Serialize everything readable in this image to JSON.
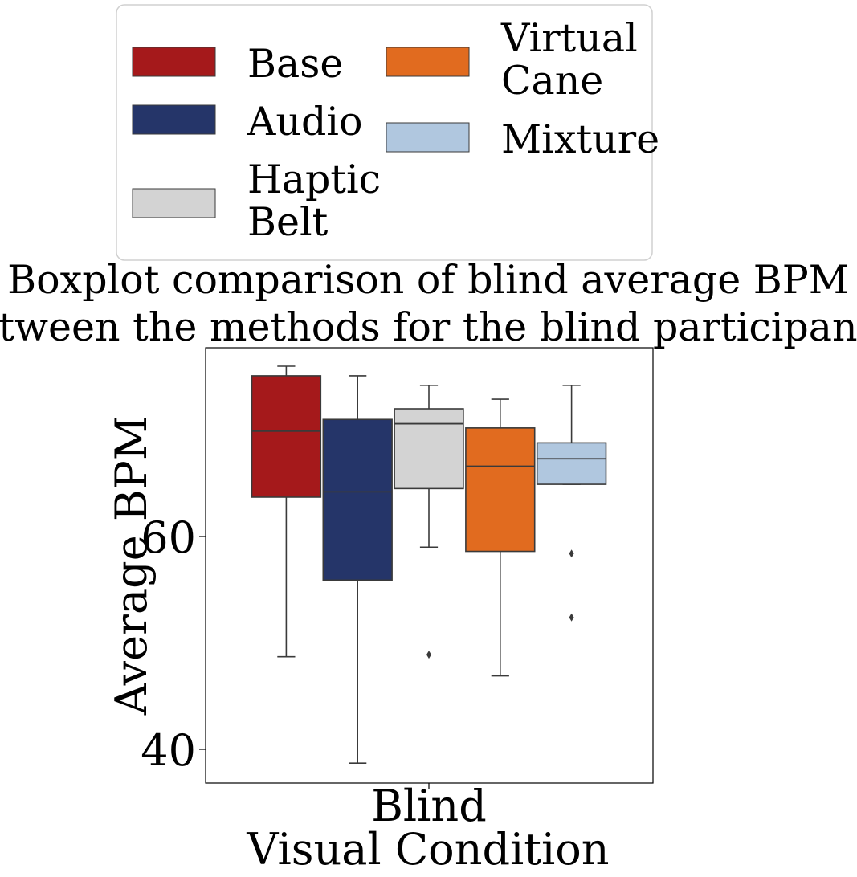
{
  "chart_data": {
    "type": "box",
    "title": [
      "Boxplot comparison of blind average BPM",
      "between the methods for the blind participants."
    ],
    "xlabel": "Visual Condition",
    "ylabel": "Average BPM",
    "categories": [
      "Blind"
    ],
    "yticks": [
      40,
      60
    ],
    "ylim": [
      37,
      78
    ],
    "grid": false,
    "legend": {
      "position": "top",
      "columns": 2,
      "entries": [
        {
          "lines": [
            "Base"
          ],
          "color": "#a5191b"
        },
        {
          "lines": [
            "Audio"
          ],
          "color": "#253569"
        },
        {
          "lines": [
            "Haptic",
            "Belt"
          ],
          "color": "#d3d3d3"
        },
        {
          "lines": [
            "Virtual",
            "Cane"
          ],
          "color": "#e16b1f"
        },
        {
          "lines": [
            "Mixture"
          ],
          "color": "#b0c7df"
        }
      ]
    },
    "series": [
      {
        "name": "Base",
        "color": "#a5191b",
        "whisker_low": 48.7,
        "q1": 63.7,
        "median": 69.9,
        "q3": 75.1,
        "whisker_high": 76.0,
        "outliers": []
      },
      {
        "name": "Audio",
        "color": "#253569",
        "whisker_low": 38.7,
        "q1": 55.9,
        "median": 64.2,
        "q3": 71.0,
        "whisker_high": 75.1,
        "outliers": []
      },
      {
        "name": "Haptic Belt",
        "color": "#d3d3d3",
        "whisker_low": 59.0,
        "q1": 64.5,
        "median": 70.6,
        "q3": 72.0,
        "whisker_high": 74.2,
        "outliers": [
          48.9
        ]
      },
      {
        "name": "Virtual Cane",
        "color": "#e16b1f",
        "whisker_low": 46.9,
        "q1": 58.6,
        "median": 66.6,
        "q3": 70.2,
        "whisker_high": 72.9,
        "outliers": []
      },
      {
        "name": "Mixture",
        "color": "#b0c7df",
        "whisker_low": 64.9,
        "q1": 64.9,
        "median": 67.3,
        "q3": 68.8,
        "whisker_high": 74.2,
        "outliers": [
          58.4,
          52.4
        ]
      }
    ]
  }
}
